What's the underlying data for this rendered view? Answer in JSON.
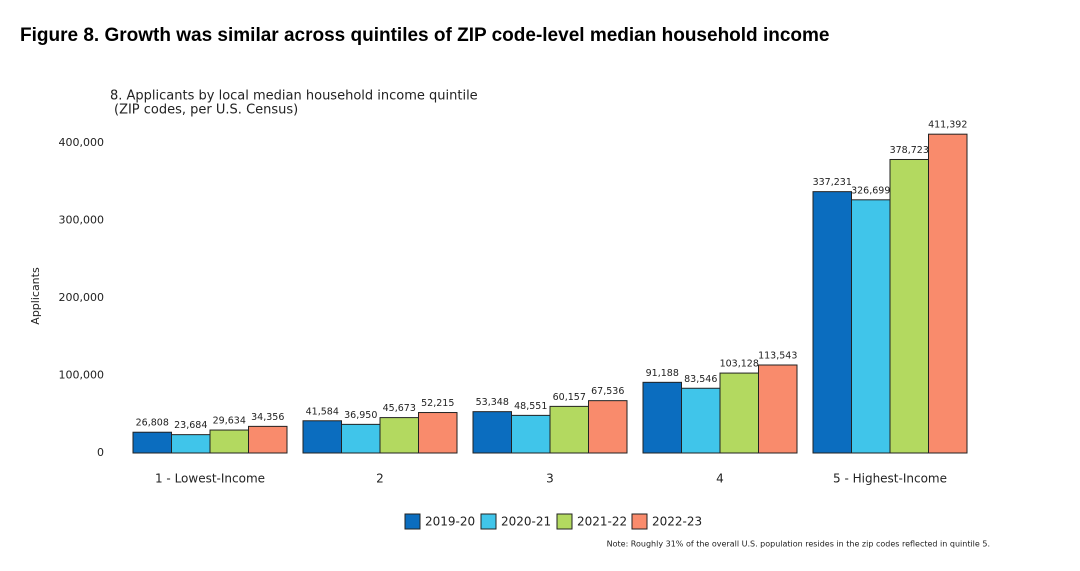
{
  "figure_title": "Figure 8. Growth was similar across quintiles of ZIP code-level median household income",
  "chart_data": {
    "type": "bar",
    "title": "8. Applicants by local median household income quintile",
    "subtitle": "(ZIP codes, per U.S. Census)",
    "y_label": "Applicants",
    "categories": [
      "1 - Lowest-Income",
      "2",
      "3",
      "4",
      "5 - Highest-Income"
    ],
    "series": [
      {
        "name": "2019-20",
        "color": "#0b6dbf",
        "values": [
          26808,
          41584,
          53348,
          91188,
          337231
        ],
        "value_labels": [
          "26,808",
          "41,584",
          "53,348",
          "91,188",
          "337,231"
        ]
      },
      {
        "name": "2020-21",
        "color": "#40c5ea",
        "values": [
          23684,
          36950,
          48551,
          83546,
          326699
        ],
        "value_labels": [
          "23,684",
          "36,950",
          "48,551",
          "83,546",
          "326,699"
        ]
      },
      {
        "name": "2021-22",
        "color": "#b3d960",
        "values": [
          29634,
          45673,
          60157,
          103128,
          378723
        ],
        "value_labels": [
          "29,634",
          "45,673",
          "60,157",
          "103,128",
          "378,723"
        ]
      },
      {
        "name": "2022-23",
        "color": "#f98b6c",
        "values": [
          34356,
          52215,
          67536,
          113543,
          411392
        ],
        "value_labels": [
          "34,356",
          "52,215",
          "67,536",
          "113,543",
          "411,392"
        ]
      }
    ],
    "ylim": [
      0,
      400000
    ],
    "yticks": [
      0,
      {
        "value": 100000,
        "label": "100,000"
      },
      {
        "value": 200000,
        "label": "200,000"
      },
      {
        "value": 300000,
        "label": "300,000"
      },
      {
        "value": 400000,
        "label": "400,000"
      }
    ],
    "grid": false,
    "legend": "bottom",
    "note": "Note: Roughly 31% of the overall U.S. population resides in the zip codes reflected in quintile 5."
  }
}
